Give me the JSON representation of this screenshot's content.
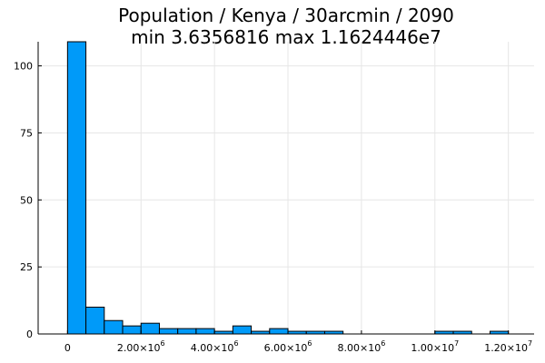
{
  "chart_data": {
    "type": "bar",
    "title": "Population / Kenya / 30arcmin / 2090",
    "subtitle": "min 3.6356816  max 1.1624446e7",
    "xlabel": "",
    "ylabel": "",
    "bin_width": 500000,
    "bins": [
      {
        "x0": 0,
        "x1": 500000,
        "count": 109
      },
      {
        "x0": 500000,
        "x1": 1000000,
        "count": 10
      },
      {
        "x0": 1000000,
        "x1": 1500000,
        "count": 5
      },
      {
        "x0": 1500000,
        "x1": 2000000,
        "count": 3
      },
      {
        "x0": 2000000,
        "x1": 2500000,
        "count": 4
      },
      {
        "x0": 2500000,
        "x1": 3000000,
        "count": 2
      },
      {
        "x0": 3000000,
        "x1": 3500000,
        "count": 2
      },
      {
        "x0": 3500000,
        "x1": 4000000,
        "count": 2
      },
      {
        "x0": 4000000,
        "x1": 4500000,
        "count": 1
      },
      {
        "x0": 4500000,
        "x1": 5000000,
        "count": 3
      },
      {
        "x0": 5000000,
        "x1": 5500000,
        "count": 1
      },
      {
        "x0": 5500000,
        "x1": 6000000,
        "count": 2
      },
      {
        "x0": 6000000,
        "x1": 6500000,
        "count": 1
      },
      {
        "x0": 6500000,
        "x1": 7000000,
        "count": 1
      },
      {
        "x0": 7000000,
        "x1": 7500000,
        "count": 1
      },
      {
        "x0": 10000000,
        "x1": 10500000,
        "count": 1
      },
      {
        "x0": 10500000,
        "x1": 11000000,
        "count": 1
      },
      {
        "x0": 11500000,
        "x1": 12000000,
        "count": 1
      }
    ],
    "xlim": [
      -800000,
      12700000
    ],
    "ylim": [
      0,
      109
    ],
    "x_ticks": [
      {
        "value": 0,
        "mantissa": "0",
        "exponent": ""
      },
      {
        "value": 2000000,
        "mantissa": "2.00×10",
        "exponent": "6"
      },
      {
        "value": 4000000,
        "mantissa": "4.00×10",
        "exponent": "6"
      },
      {
        "value": 6000000,
        "mantissa": "6.00×10",
        "exponent": "6"
      },
      {
        "value": 8000000,
        "mantissa": "8.00×10",
        "exponent": "6"
      },
      {
        "value": 10000000,
        "mantissa": "1.00×10",
        "exponent": "7"
      },
      {
        "value": 12000000,
        "mantissa": "1.20×10",
        "exponent": "7"
      }
    ],
    "y_ticks": [
      {
        "value": 0,
        "label": "0"
      },
      {
        "value": 25,
        "label": "25"
      },
      {
        "value": 50,
        "label": "50"
      },
      {
        "value": 75,
        "label": "75"
      },
      {
        "value": 100,
        "label": "100"
      }
    ],
    "grid": true,
    "legend": "none",
    "bar_color": "#009af9",
    "edge_color": "#000000"
  }
}
